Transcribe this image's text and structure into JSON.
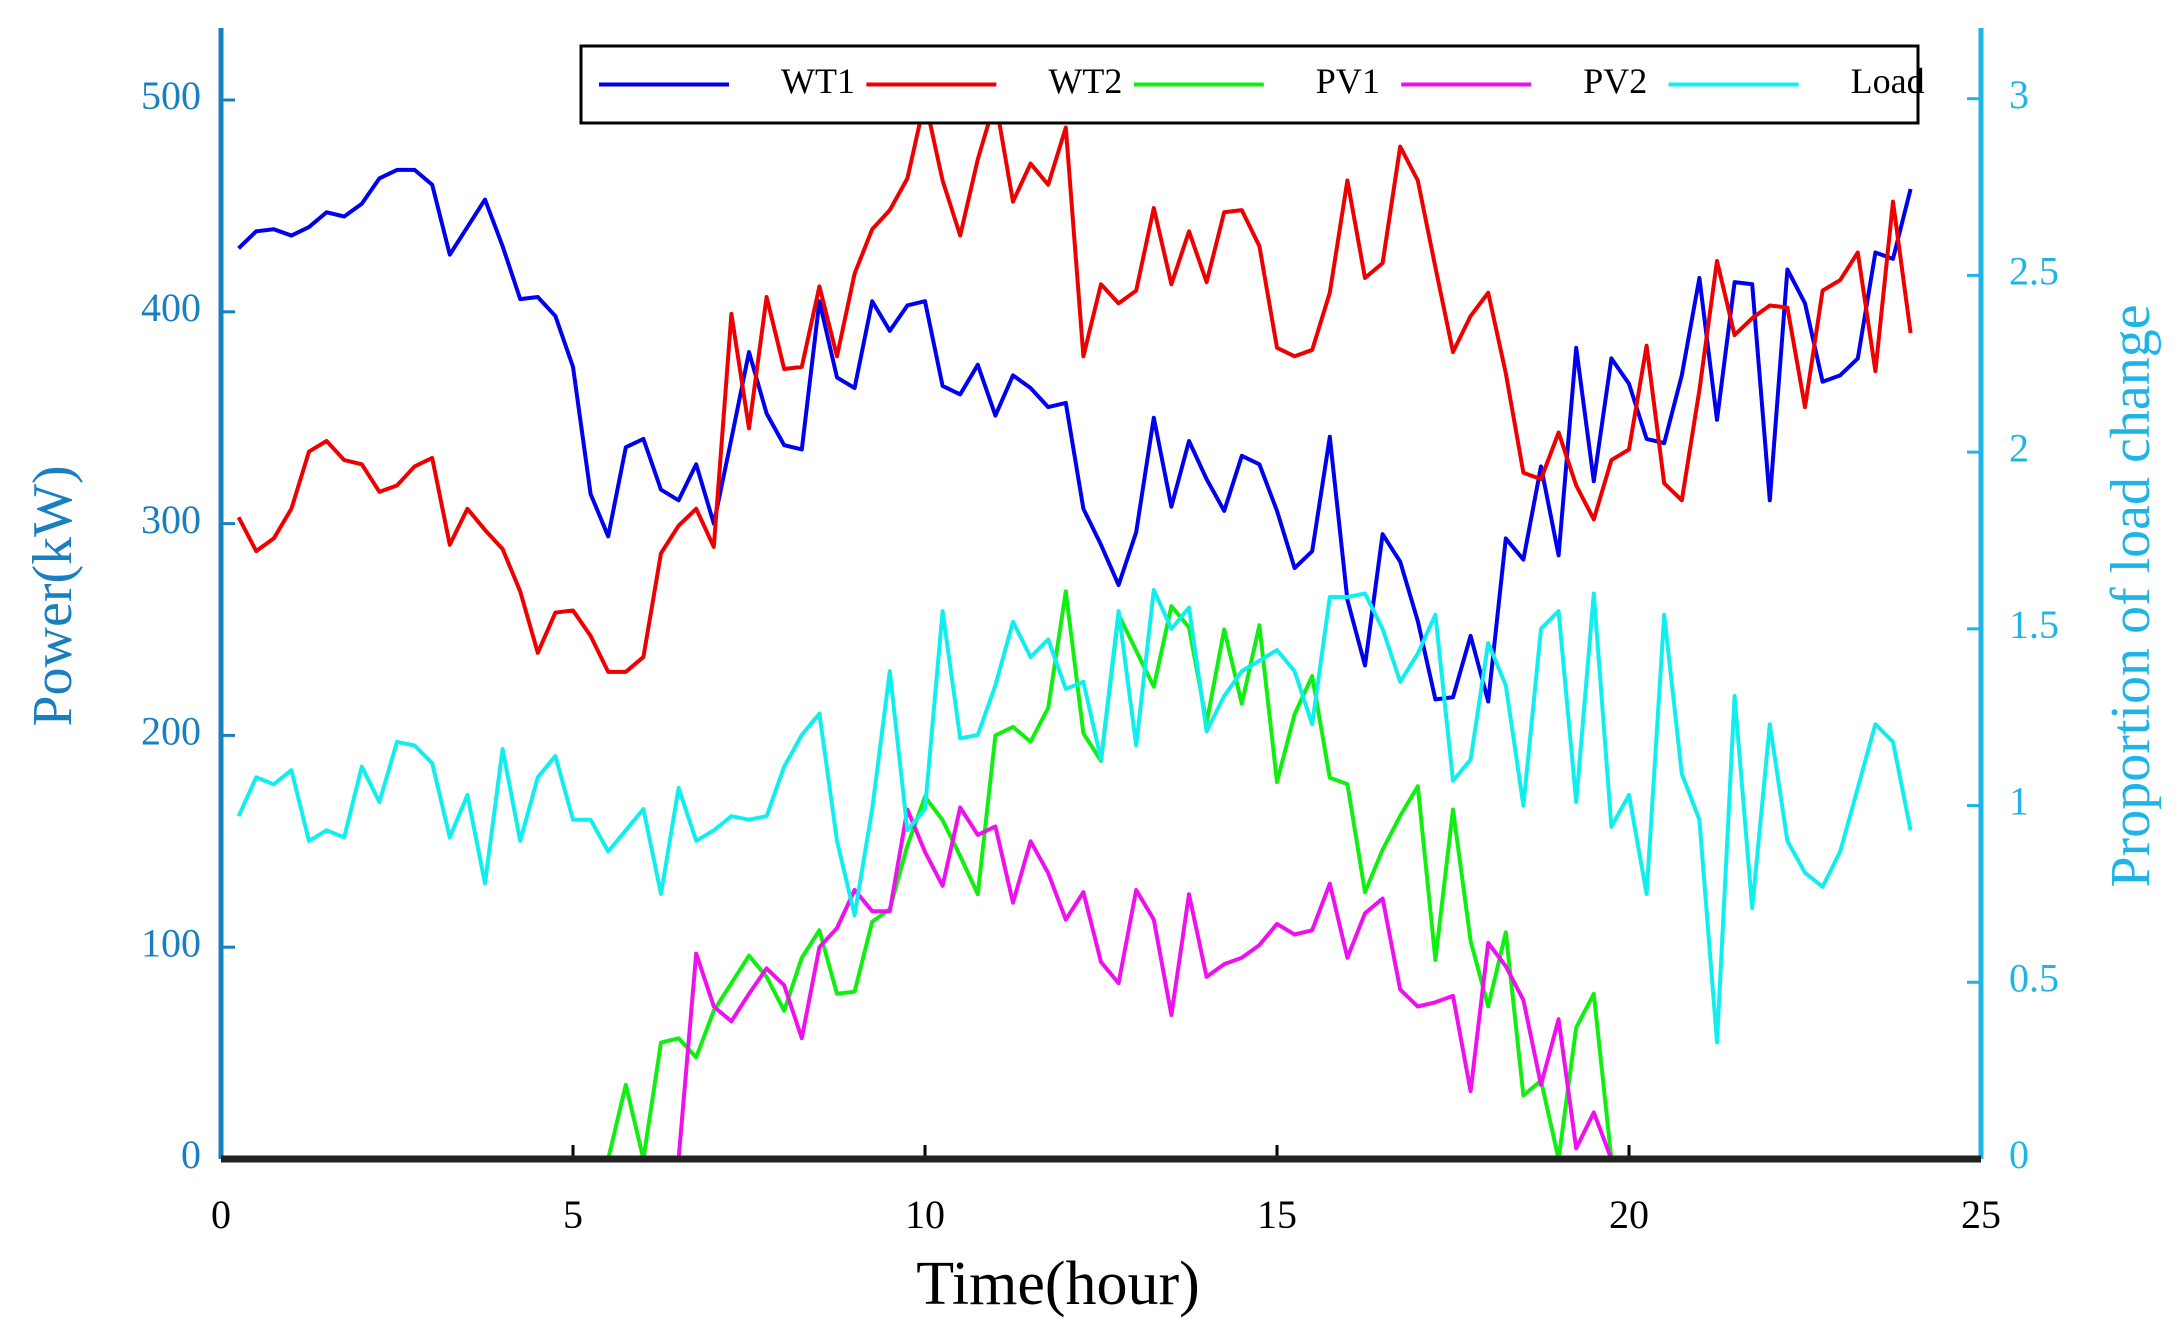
{
  "chart_data": {
    "type": "line",
    "xlabel": "Time(hour)",
    "ylabel": "Power(kW)",
    "y2label": "Proportion of load change",
    "xlim": [
      0,
      25
    ],
    "xticks": [
      0,
      5,
      10,
      15,
      20,
      25
    ],
    "ylim": [
      0,
      534
    ],
    "yticks": [
      0,
      100,
      200,
      300,
      400,
      500
    ],
    "y2lim": [
      0,
      3.2
    ],
    "y2ticks": [
      0,
      0.5,
      1,
      1.5,
      2,
      2.5,
      3
    ],
    "legend": "top",
    "grid": false,
    "x": [
      0.25,
      0.5,
      0.75,
      1,
      1.25,
      1.5,
      1.75,
      2,
      2.25,
      2.5,
      2.75,
      3,
      3.25,
      3.5,
      3.75,
      4,
      4.25,
      4.5,
      4.75,
      5,
      5.25,
      5.5,
      5.75,
      6,
      6.25,
      6.5,
      6.75,
      7,
      7.25,
      7.5,
      7.75,
      8,
      8.25,
      8.5,
      8.75,
      9,
      9.25,
      9.5,
      9.75,
      10,
      10.25,
      10.5,
      10.75,
      11,
      11.25,
      11.5,
      11.75,
      12,
      12.25,
      12.5,
      12.75,
      13,
      13.25,
      13.5,
      13.75,
      14,
      14.25,
      14.5,
      14.75,
      15,
      15.25,
      15.5,
      15.75,
      16,
      16.25,
      16.5,
      16.75,
      17,
      17.25,
      17.5,
      17.75,
      18,
      18.25,
      18.5,
      18.75,
      19,
      19.25,
      19.5,
      19.75,
      20,
      20.25,
      20.5,
      20.75,
      21,
      21.25,
      21.5,
      21.75,
      22,
      22.25,
      22.5,
      22.75,
      23,
      23.25,
      23.5,
      23.75,
      24
    ],
    "series": [
      {
        "name": "WT1",
        "color": "#0000ee",
        "values": [
          430,
          438,
          439,
          436,
          440,
          447,
          445,
          451,
          463,
          467,
          467,
          460,
          427,
          440,
          453,
          431,
          406,
          407,
          398,
          374,
          314,
          294,
          336,
          340,
          316,
          311,
          328,
          300,
          340,
          381,
          352,
          337,
          335,
          405,
          369,
          364,
          405,
          391,
          403,
          405,
          365,
          361,
          375,
          351,
          370,
          364,
          355,
          357,
          307,
          290,
          271,
          296,
          350,
          308,
          339,
          321,
          306,
          332,
          328,
          306,
          279,
          287,
          341,
          264,
          233,
          295,
          282,
          254,
          217,
          218,
          247,
          216,
          293,
          283,
          327,
          285,
          383,
          320,
          378,
          366,
          340,
          338,
          370,
          416,
          349,
          414,
          413,
          311,
          420,
          404,
          367,
          370,
          378,
          428,
          425,
          458
        ]
      },
      {
        "name": "WT2",
        "color": "#ee0000",
        "values": [
          303,
          287,
          293,
          307,
          334,
          339,
          330,
          328,
          315,
          318,
          327,
          331,
          290,
          307,
          297,
          288,
          268,
          239,
          258,
          259,
          247,
          230,
          230,
          237,
          286,
          299,
          307,
          289,
          399,
          345,
          407,
          373,
          374,
          412,
          379,
          418,
          439,
          448,
          463,
          500,
          462,
          436,
          472,
          500,
          452,
          470,
          460,
          487,
          379,
          413,
          404,
          410,
          449,
          413,
          438,
          414,
          447,
          448,
          431,
          383,
          379,
          382,
          409,
          462,
          416,
          423,
          478,
          462,
          421,
          381,
          398,
          409,
          371,
          324,
          321,
          343,
          318,
          302,
          330,
          335,
          384,
          319,
          311,
          363,
          424,
          389,
          397,
          403,
          402,
          355,
          410,
          415,
          428,
          372,
          452,
          390
        ]
      },
      {
        "name": "PV1",
        "color": "#11ee11",
        "values": [
          0,
          0,
          0,
          0,
          0,
          0,
          0,
          0,
          0,
          0,
          0,
          0,
          0,
          0,
          0,
          0,
          0,
          0,
          0,
          0,
          0,
          0,
          35,
          0,
          55,
          57,
          48,
          70,
          83,
          96,
          86,
          70,
          95,
          108,
          78,
          79,
          112,
          118,
          148,
          171,
          160,
          143,
          125,
          200,
          204,
          197,
          213,
          268,
          201,
          188,
          257,
          240,
          223,
          261,
          251,
          206,
          250,
          215,
          252,
          178,
          210,
          228,
          180,
          177,
          126,
          146,
          162,
          176,
          94,
          165,
          103,
          72,
          107,
          30,
          37,
          0,
          62,
          78,
          0,
          0,
          0,
          0,
          0,
          0,
          0,
          0,
          0,
          0,
          0,
          0,
          0,
          0,
          0,
          0,
          0,
          0
        ]
      },
      {
        "name": "PV2",
        "color": "#ee11ee",
        "values": [
          0,
          0,
          0,
          0,
          0,
          0,
          0,
          0,
          0,
          0,
          0,
          0,
          0,
          0,
          0,
          0,
          0,
          0,
          0,
          0,
          0,
          0,
          0,
          0,
          0,
          0,
          97,
          72,
          65,
          78,
          90,
          82,
          57,
          100,
          109,
          127,
          117,
          117,
          165,
          145,
          129,
          166,
          153,
          157,
          121,
          150,
          135,
          113,
          126,
          93,
          83,
          127,
          113,
          68,
          125,
          86,
          92,
          95,
          101,
          111,
          106,
          108,
          130,
          95,
          116,
          123,
          80,
          72,
          74,
          77,
          32,
          102,
          91,
          75,
          35,
          66,
          5,
          22,
          0,
          0,
          0,
          0,
          0,
          0,
          0,
          0,
          0,
          0,
          0,
          0,
          0,
          0,
          0,
          0,
          0,
          0
        ]
      },
      {
        "name": "Load",
        "color": "#11eeee",
        "axis": "y2",
        "values": [
          0.97,
          1.08,
          1.06,
          1.1,
          0.9,
          0.93,
          0.91,
          1.11,
          1.01,
          1.18,
          1.17,
          1.12,
          0.91,
          1.03,
          0.78,
          1.16,
          0.9,
          1.08,
          1.14,
          0.96,
          0.96,
          0.87,
          0.93,
          0.99,
          0.75,
          1.05,
          0.9,
          0.93,
          0.97,
          0.96,
          0.97,
          1.11,
          1.2,
          1.26,
          0.9,
          0.69,
          0.99,
          1.38,
          0.93,
          0.99,
          1.55,
          1.19,
          1.2,
          1.34,
          1.52,
          1.42,
          1.47,
          1.33,
          1.35,
          1.13,
          1.55,
          1.17,
          1.61,
          1.5,
          1.56,
          1.21,
          1.31,
          1.38,
          1.41,
          1.44,
          1.38,
          1.23,
          1.59,
          1.59,
          1.6,
          1.5,
          1.35,
          1.43,
          1.54,
          1.07,
          1.13,
          1.46,
          1.34,
          1.0,
          1.5,
          1.55,
          1.01,
          1.6,
          0.94,
          1.03,
          0.75,
          1.54,
          1.09,
          0.96,
          0.33,
          1.31,
          0.71,
          1.23,
          0.9,
          0.81,
          0.77,
          0.87,
          1.05,
          1.23,
          1.18,
          0.93
        ]
      }
    ]
  }
}
